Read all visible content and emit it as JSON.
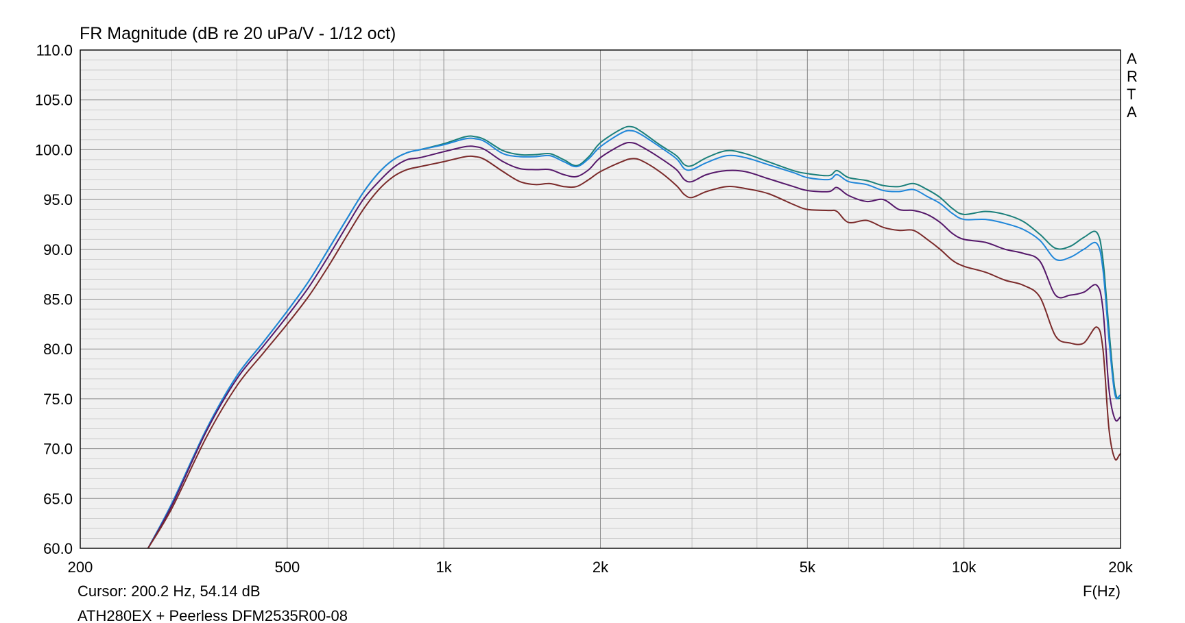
{
  "chart_data": {
    "type": "line",
    "title": "FR Magnitude (dB re 20 uPa/V - 1/12 oct)",
    "xlabel": "F(Hz)",
    "ylabel": "",
    "xscale": "log",
    "xlim": [
      200,
      20000
    ],
    "ylim": [
      60,
      110
    ],
    "x_ticks": [
      {
        "value": 200,
        "label": "200"
      },
      {
        "value": 500,
        "label": "500"
      },
      {
        "value": 1000,
        "label": "1k"
      },
      {
        "value": 2000,
        "label": "2k"
      },
      {
        "value": 5000,
        "label": "5k"
      },
      {
        "value": 10000,
        "label": "10k"
      },
      {
        "value": 20000,
        "label": "20k"
      }
    ],
    "y_ticks": [
      {
        "value": 60,
        "label": "60.0"
      },
      {
        "value": 65,
        "label": "65.0"
      },
      {
        "value": 70,
        "label": "70.0"
      },
      {
        "value": 75,
        "label": "75.0"
      },
      {
        "value": 80,
        "label": "80.0"
      },
      {
        "value": 85,
        "label": "85.0"
      },
      {
        "value": 90,
        "label": "90.0"
      },
      {
        "value": 95,
        "label": "95.0"
      },
      {
        "value": 100,
        "label": "100.0"
      },
      {
        "value": 105,
        "label": "105.0"
      },
      {
        "value": 110,
        "label": "110.0"
      }
    ],
    "grid": true,
    "legend": "none",
    "cursor_text": "Cursor: 200.2 Hz, 54.14 dB",
    "caption": "ATH280EX + Peerless DFM2535R00-08",
    "brand": [
      "A",
      "R",
      "T",
      "A"
    ],
    "series": [
      {
        "color": "#1a7f7a",
        "points": [
          [
            270,
            60
          ],
          [
            300,
            64.5
          ],
          [
            350,
            72
          ],
          [
            400,
            77.3
          ],
          [
            450,
            80.7
          ],
          [
            500,
            83.8
          ],
          [
            550,
            86.8
          ],
          [
            600,
            90
          ],
          [
            650,
            93
          ],
          [
            700,
            95.7
          ],
          [
            750,
            97.7
          ],
          [
            800,
            99
          ],
          [
            850,
            99.7
          ],
          [
            900,
            100
          ],
          [
            1000,
            100.6
          ],
          [
            1100,
            101.3
          ],
          [
            1150,
            101.3
          ],
          [
            1200,
            101
          ],
          [
            1300,
            99.9
          ],
          [
            1400,
            99.5
          ],
          [
            1500,
            99.5
          ],
          [
            1600,
            99.6
          ],
          [
            1700,
            99
          ],
          [
            1800,
            98.4
          ],
          [
            1900,
            99.3
          ],
          [
            2000,
            100.7
          ],
          [
            2200,
            102.1
          ],
          [
            2300,
            102.3
          ],
          [
            2400,
            101.8
          ],
          [
            2600,
            100.5
          ],
          [
            2800,
            99.4
          ],
          [
            2900,
            98.5
          ],
          [
            3000,
            98.4
          ],
          [
            3200,
            99.2
          ],
          [
            3500,
            99.9
          ],
          [
            3800,
            99.6
          ],
          [
            4200,
            98.8
          ],
          [
            4700,
            97.9
          ],
          [
            5000,
            97.6
          ],
          [
            5500,
            97.4
          ],
          [
            5700,
            97.9
          ],
          [
            6000,
            97.2
          ],
          [
            6500,
            96.9
          ],
          [
            7000,
            96.4
          ],
          [
            7500,
            96.3
          ],
          [
            8000,
            96.6
          ],
          [
            8500,
            96
          ],
          [
            9000,
            95.2
          ],
          [
            9500,
            94.1
          ],
          [
            10000,
            93.5
          ],
          [
            11000,
            93.8
          ],
          [
            12000,
            93.5
          ],
          [
            13000,
            92.8
          ],
          [
            14000,
            91.5
          ],
          [
            15000,
            90.1
          ],
          [
            16000,
            90.3
          ],
          [
            17000,
            91.2
          ],
          [
            18000,
            91.7
          ],
          [
            18500,
            89
          ],
          [
            19000,
            82
          ],
          [
            19500,
            76
          ],
          [
            20000,
            75.1
          ],
          [
            21000,
            76.7
          ]
        ]
      },
      {
        "color": "#1f86d9",
        "points": [
          [
            270,
            60
          ],
          [
            300,
            64.5
          ],
          [
            350,
            72
          ],
          [
            400,
            77.3
          ],
          [
            450,
            80.7
          ],
          [
            500,
            83.8
          ],
          [
            550,
            86.8
          ],
          [
            600,
            90
          ],
          [
            650,
            93
          ],
          [
            700,
            95.7
          ],
          [
            750,
            97.7
          ],
          [
            800,
            99
          ],
          [
            850,
            99.7
          ],
          [
            900,
            100
          ],
          [
            1000,
            100.5
          ],
          [
            1100,
            101.1
          ],
          [
            1150,
            101.1
          ],
          [
            1200,
            100.8
          ],
          [
            1300,
            99.6
          ],
          [
            1400,
            99.3
          ],
          [
            1500,
            99.3
          ],
          [
            1600,
            99.4
          ],
          [
            1700,
            98.8
          ],
          [
            1800,
            98.3
          ],
          [
            1900,
            99.1
          ],
          [
            2000,
            100.3
          ],
          [
            2200,
            101.7
          ],
          [
            2300,
            101.9
          ],
          [
            2400,
            101.5
          ],
          [
            2600,
            100.3
          ],
          [
            2800,
            99.1
          ],
          [
            2900,
            98.1
          ],
          [
            3000,
            98
          ],
          [
            3200,
            98.7
          ],
          [
            3500,
            99.4
          ],
          [
            3800,
            99.2
          ],
          [
            4200,
            98.5
          ],
          [
            4700,
            97.7
          ],
          [
            5000,
            97.2
          ],
          [
            5500,
            97
          ],
          [
            5700,
            97.5
          ],
          [
            6000,
            96.8
          ],
          [
            6500,
            96.5
          ],
          [
            7000,
            95.9
          ],
          [
            7500,
            95.8
          ],
          [
            8000,
            96
          ],
          [
            8500,
            95.3
          ],
          [
            9000,
            94.6
          ],
          [
            9500,
            93.6
          ],
          [
            10000,
            93
          ],
          [
            11000,
            93
          ],
          [
            12000,
            92.6
          ],
          [
            13000,
            92
          ],
          [
            14000,
            90.9
          ],
          [
            15000,
            89
          ],
          [
            16000,
            89.2
          ],
          [
            17000,
            90
          ],
          [
            18000,
            90.6
          ],
          [
            18500,
            88
          ],
          [
            19000,
            81
          ],
          [
            19500,
            75.5
          ],
          [
            20000,
            75.4
          ],
          [
            21000,
            76.5
          ]
        ]
      },
      {
        "color": "#55186a",
        "points": [
          [
            270,
            60
          ],
          [
            300,
            64.3
          ],
          [
            350,
            71.8
          ],
          [
            400,
            77
          ],
          [
            450,
            80.3
          ],
          [
            500,
            83.3
          ],
          [
            550,
            86.2
          ],
          [
            600,
            89.3
          ],
          [
            650,
            92.3
          ],
          [
            700,
            95
          ],
          [
            750,
            96.8
          ],
          [
            800,
            98.2
          ],
          [
            850,
            99
          ],
          [
            900,
            99.2
          ],
          [
            1000,
            99.8
          ],
          [
            1100,
            100.3
          ],
          [
            1150,
            100.3
          ],
          [
            1200,
            100
          ],
          [
            1300,
            98.8
          ],
          [
            1400,
            98.1
          ],
          [
            1500,
            98
          ],
          [
            1600,
            98
          ],
          [
            1700,
            97.5
          ],
          [
            1800,
            97.3
          ],
          [
            1900,
            98
          ],
          [
            2000,
            99.2
          ],
          [
            2200,
            100.5
          ],
          [
            2300,
            100.7
          ],
          [
            2400,
            100.3
          ],
          [
            2600,
            99.2
          ],
          [
            2800,
            98
          ],
          [
            2900,
            97
          ],
          [
            3000,
            96.8
          ],
          [
            3200,
            97.5
          ],
          [
            3500,
            97.9
          ],
          [
            3800,
            97.8
          ],
          [
            4200,
            97.1
          ],
          [
            4700,
            96.3
          ],
          [
            5000,
            95.9
          ],
          [
            5500,
            95.8
          ],
          [
            5700,
            96.2
          ],
          [
            6000,
            95.4
          ],
          [
            6500,
            94.8
          ],
          [
            7000,
            95
          ],
          [
            7500,
            94
          ],
          [
            8000,
            93.9
          ],
          [
            8500,
            93.5
          ],
          [
            9000,
            92.7
          ],
          [
            9500,
            91.6
          ],
          [
            10000,
            91
          ],
          [
            11000,
            90.7
          ],
          [
            12000,
            90
          ],
          [
            13000,
            89.6
          ],
          [
            14000,
            88.8
          ],
          [
            15000,
            85.4
          ],
          [
            16000,
            85.4
          ],
          [
            17000,
            85.7
          ],
          [
            18000,
            86.4
          ],
          [
            18500,
            84
          ],
          [
            19000,
            76
          ],
          [
            19500,
            73
          ],
          [
            20000,
            73.2
          ],
          [
            21000,
            74.8
          ]
        ]
      },
      {
        "color": "#7a2a2a",
        "points": [
          [
            270,
            60
          ],
          [
            300,
            64
          ],
          [
            350,
            71.2
          ],
          [
            400,
            76.3
          ],
          [
            450,
            79.6
          ],
          [
            500,
            82.5
          ],
          [
            550,
            85.3
          ],
          [
            600,
            88.3
          ],
          [
            650,
            91.3
          ],
          [
            700,
            94
          ],
          [
            750,
            96
          ],
          [
            800,
            97.3
          ],
          [
            850,
            98
          ],
          [
            900,
            98.3
          ],
          [
            1000,
            98.8
          ],
          [
            1100,
            99.3
          ],
          [
            1150,
            99.3
          ],
          [
            1200,
            99
          ],
          [
            1300,
            97.8
          ],
          [
            1400,
            96.8
          ],
          [
            1500,
            96.5
          ],
          [
            1600,
            96.6
          ],
          [
            1700,
            96.3
          ],
          [
            1800,
            96.3
          ],
          [
            1900,
            97
          ],
          [
            2000,
            97.8
          ],
          [
            2200,
            98.8
          ],
          [
            2300,
            99.1
          ],
          [
            2400,
            98.9
          ],
          [
            2600,
            97.8
          ],
          [
            2800,
            96.4
          ],
          [
            2900,
            95.5
          ],
          [
            3000,
            95.2
          ],
          [
            3200,
            95.8
          ],
          [
            3500,
            96.3
          ],
          [
            3800,
            96.1
          ],
          [
            4200,
            95.6
          ],
          [
            4700,
            94.5
          ],
          [
            5000,
            94
          ],
          [
            5500,
            93.9
          ],
          [
            5700,
            93.8
          ],
          [
            6000,
            92.7
          ],
          [
            6500,
            92.9
          ],
          [
            7000,
            92.2
          ],
          [
            7500,
            91.9
          ],
          [
            8000,
            91.9
          ],
          [
            8500,
            91
          ],
          [
            9000,
            90
          ],
          [
            9500,
            88.9
          ],
          [
            10000,
            88.3
          ],
          [
            11000,
            87.7
          ],
          [
            12000,
            86.9
          ],
          [
            13000,
            86.4
          ],
          [
            14000,
            85.2
          ],
          [
            15000,
            81.3
          ],
          [
            16000,
            80.6
          ],
          [
            17000,
            80.6
          ],
          [
            18000,
            82.2
          ],
          [
            18500,
            80
          ],
          [
            19000,
            72
          ],
          [
            19500,
            69
          ],
          [
            20000,
            69.5
          ],
          [
            21000,
            70.4
          ]
        ]
      }
    ]
  }
}
